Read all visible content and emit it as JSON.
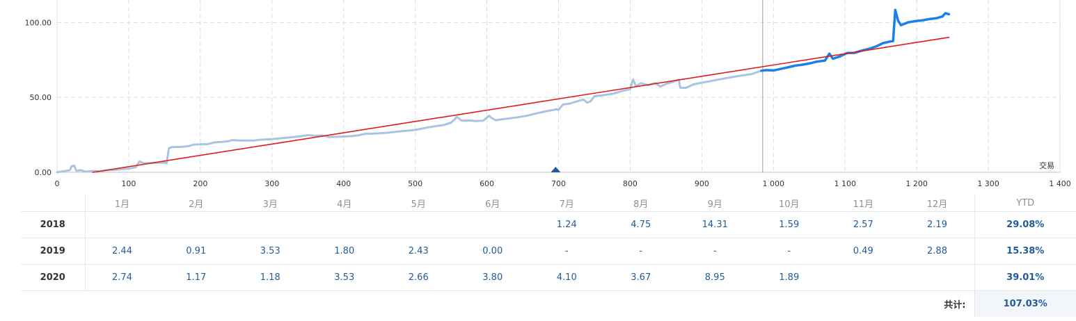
{
  "chart_data": {
    "type": "line",
    "xlabel": "交易",
    "xlim": [
      0,
      1400
    ],
    "ylim": [
      0,
      115
    ],
    "x_ticks": [
      "0",
      "100",
      "200",
      "300",
      "400",
      "500",
      "600",
      "700",
      "800",
      "900",
      "1 000",
      "1 100",
      "1 200",
      "1 300",
      "1 400"
    ],
    "y_ticks": [
      "0.00",
      "50.00",
      "100.00"
    ],
    "grid": true,
    "marker_x": 696,
    "divider_x": 985,
    "colors": {
      "history": "#a8c4e2",
      "recent": "#1a7fe8",
      "trend": "#e01919"
    },
    "series": [
      {
        "style": "history",
        "points": [
          [
            0,
            0
          ],
          [
            10,
            0.8
          ],
          [
            18,
            1.5
          ],
          [
            20,
            4
          ],
          [
            24,
            4.5
          ],
          [
            27,
            1
          ],
          [
            33,
            1.4
          ],
          [
            40,
            0.4
          ],
          [
            50,
            0.9
          ],
          [
            60,
            0.6
          ],
          [
            70,
            1.4
          ],
          [
            80,
            1.5
          ],
          [
            90,
            2.2
          ],
          [
            100,
            2.4
          ],
          [
            110,
            3.4
          ],
          [
            115,
            7.3
          ],
          [
            120,
            6.2
          ],
          [
            130,
            6.1
          ],
          [
            140,
            6.4
          ],
          [
            150,
            6.5
          ],
          [
            153,
            6
          ],
          [
            156,
            16
          ],
          [
            160,
            16.8
          ],
          [
            175,
            17
          ],
          [
            185,
            17.6
          ],
          [
            190,
            18.5
          ],
          [
            200,
            18.7
          ],
          [
            210,
            18.8
          ],
          [
            220,
            20
          ],
          [
            230,
            20.3
          ],
          [
            240,
            20.8
          ],
          [
            245,
            21.5
          ],
          [
            255,
            21.2
          ],
          [
            265,
            21.3
          ],
          [
            275,
            21.2
          ],
          [
            285,
            21.8
          ],
          [
            300,
            22.1
          ],
          [
            315,
            22.8
          ],
          [
            330,
            23.5
          ],
          [
            340,
            24
          ],
          [
            350,
            24.8
          ],
          [
            360,
            24.4
          ],
          [
            370,
            24.6
          ],
          [
            380,
            23.5
          ],
          [
            395,
            23.8
          ],
          [
            410,
            24.1
          ],
          [
            420,
            24.6
          ],
          [
            430,
            25.7
          ],
          [
            440,
            25.8
          ],
          [
            460,
            26.4
          ],
          [
            480,
            27.4
          ],
          [
            500,
            28.3
          ],
          [
            520,
            30.2
          ],
          [
            540,
            31.6
          ],
          [
            550,
            33.2
          ],
          [
            555,
            35.3
          ],
          [
            558,
            37
          ],
          [
            565,
            34.4
          ],
          [
            575,
            34.6
          ],
          [
            585,
            34.2
          ],
          [
            595,
            34.5
          ],
          [
            603,
            37.7
          ],
          [
            607,
            36.1
          ],
          [
            612,
            34.8
          ],
          [
            625,
            35.6
          ],
          [
            640,
            36.5
          ],
          [
            655,
            37.7
          ],
          [
            670,
            39.4
          ],
          [
            685,
            41
          ],
          [
            693,
            41.6
          ],
          [
            697,
            42.1
          ],
          [
            700,
            41.6
          ],
          [
            706,
            45.2
          ],
          [
            715,
            45.8
          ],
          [
            725,
            47.2
          ],
          [
            735,
            48.6
          ],
          [
            740,
            46.5
          ],
          [
            745,
            47.5
          ],
          [
            750,
            50.8
          ],
          [
            760,
            51.3
          ],
          [
            775,
            52.3
          ],
          [
            790,
            54.4
          ],
          [
            800,
            55.5
          ],
          [
            804,
            62
          ],
          [
            808,
            57.4
          ],
          [
            815,
            59.5
          ],
          [
            825,
            58.1
          ],
          [
            835,
            59.6
          ],
          [
            842,
            57.2
          ],
          [
            850,
            59
          ],
          [
            860,
            60.4
          ],
          [
            868,
            61.8
          ],
          [
            870,
            56.4
          ],
          [
            878,
            56.4
          ],
          [
            888,
            58.6
          ],
          [
            900,
            59.8
          ],
          [
            915,
            61.1
          ],
          [
            930,
            62.5
          ],
          [
            950,
            64.2
          ],
          [
            970,
            65.6
          ],
          [
            983,
            67.8
          ]
        ]
      },
      {
        "style": "recent",
        "points": [
          [
            983,
            67.8
          ],
          [
            990,
            68.2
          ],
          [
            1000,
            68
          ],
          [
            1010,
            69
          ],
          [
            1020,
            70
          ],
          [
            1030,
            71.2
          ],
          [
            1040,
            71.8
          ],
          [
            1050,
            72.6
          ],
          [
            1060,
            73.8
          ],
          [
            1072,
            74.6
          ],
          [
            1078,
            79.2
          ],
          [
            1083,
            75.8
          ],
          [
            1093,
            77.4
          ],
          [
            1103,
            79.6
          ],
          [
            1113,
            79.7
          ],
          [
            1123,
            81.2
          ],
          [
            1133,
            82.3
          ],
          [
            1143,
            84
          ],
          [
            1153,
            86.2
          ],
          [
            1163,
            87.3
          ],
          [
            1167,
            87.6
          ],
          [
            1170,
            108.4
          ],
          [
            1174,
            101.2
          ],
          [
            1178,
            98.2
          ],
          [
            1188,
            100.1
          ],
          [
            1198,
            100.9
          ],
          [
            1208,
            101.4
          ],
          [
            1218,
            102.3
          ],
          [
            1228,
            102.9
          ],
          [
            1236,
            104
          ],
          [
            1240,
            106.2
          ],
          [
            1245,
            105.5
          ]
        ]
      },
      {
        "style": "trend",
        "points": [
          [
            50,
            0
          ],
          [
            1245,
            90.1
          ]
        ]
      }
    ]
  },
  "returns_table": {
    "months": [
      "1月",
      "2月",
      "3月",
      "4月",
      "5月",
      "6月",
      "7月",
      "8月",
      "9月",
      "10月",
      "11月",
      "12月"
    ],
    "ytd_header": "YTD",
    "rows": [
      {
        "year": "2018",
        "values": [
          "",
          "",
          "",
          "",
          "",
          "",
          "1.24",
          "4.75",
          "14.31",
          "1.59",
          "2.57",
          "2.19"
        ],
        "ytd": "29.08%"
      },
      {
        "year": "2019",
        "values": [
          "2.44",
          "0.91",
          "3.53",
          "1.80",
          "2.43",
          "0.00",
          "-",
          "-",
          "-",
          "-",
          "0.49",
          "2.88"
        ],
        "ytd": "15.38%"
      },
      {
        "year": "2020",
        "values": [
          "2.74",
          "1.17",
          "1.18",
          "3.53",
          "2.66",
          "3.80",
          "4.10",
          "3.67",
          "8.95",
          "1.89",
          "",
          ""
        ],
        "ytd": "39.01%"
      }
    ],
    "total_label": "共计:",
    "total_value": "107.03%"
  }
}
